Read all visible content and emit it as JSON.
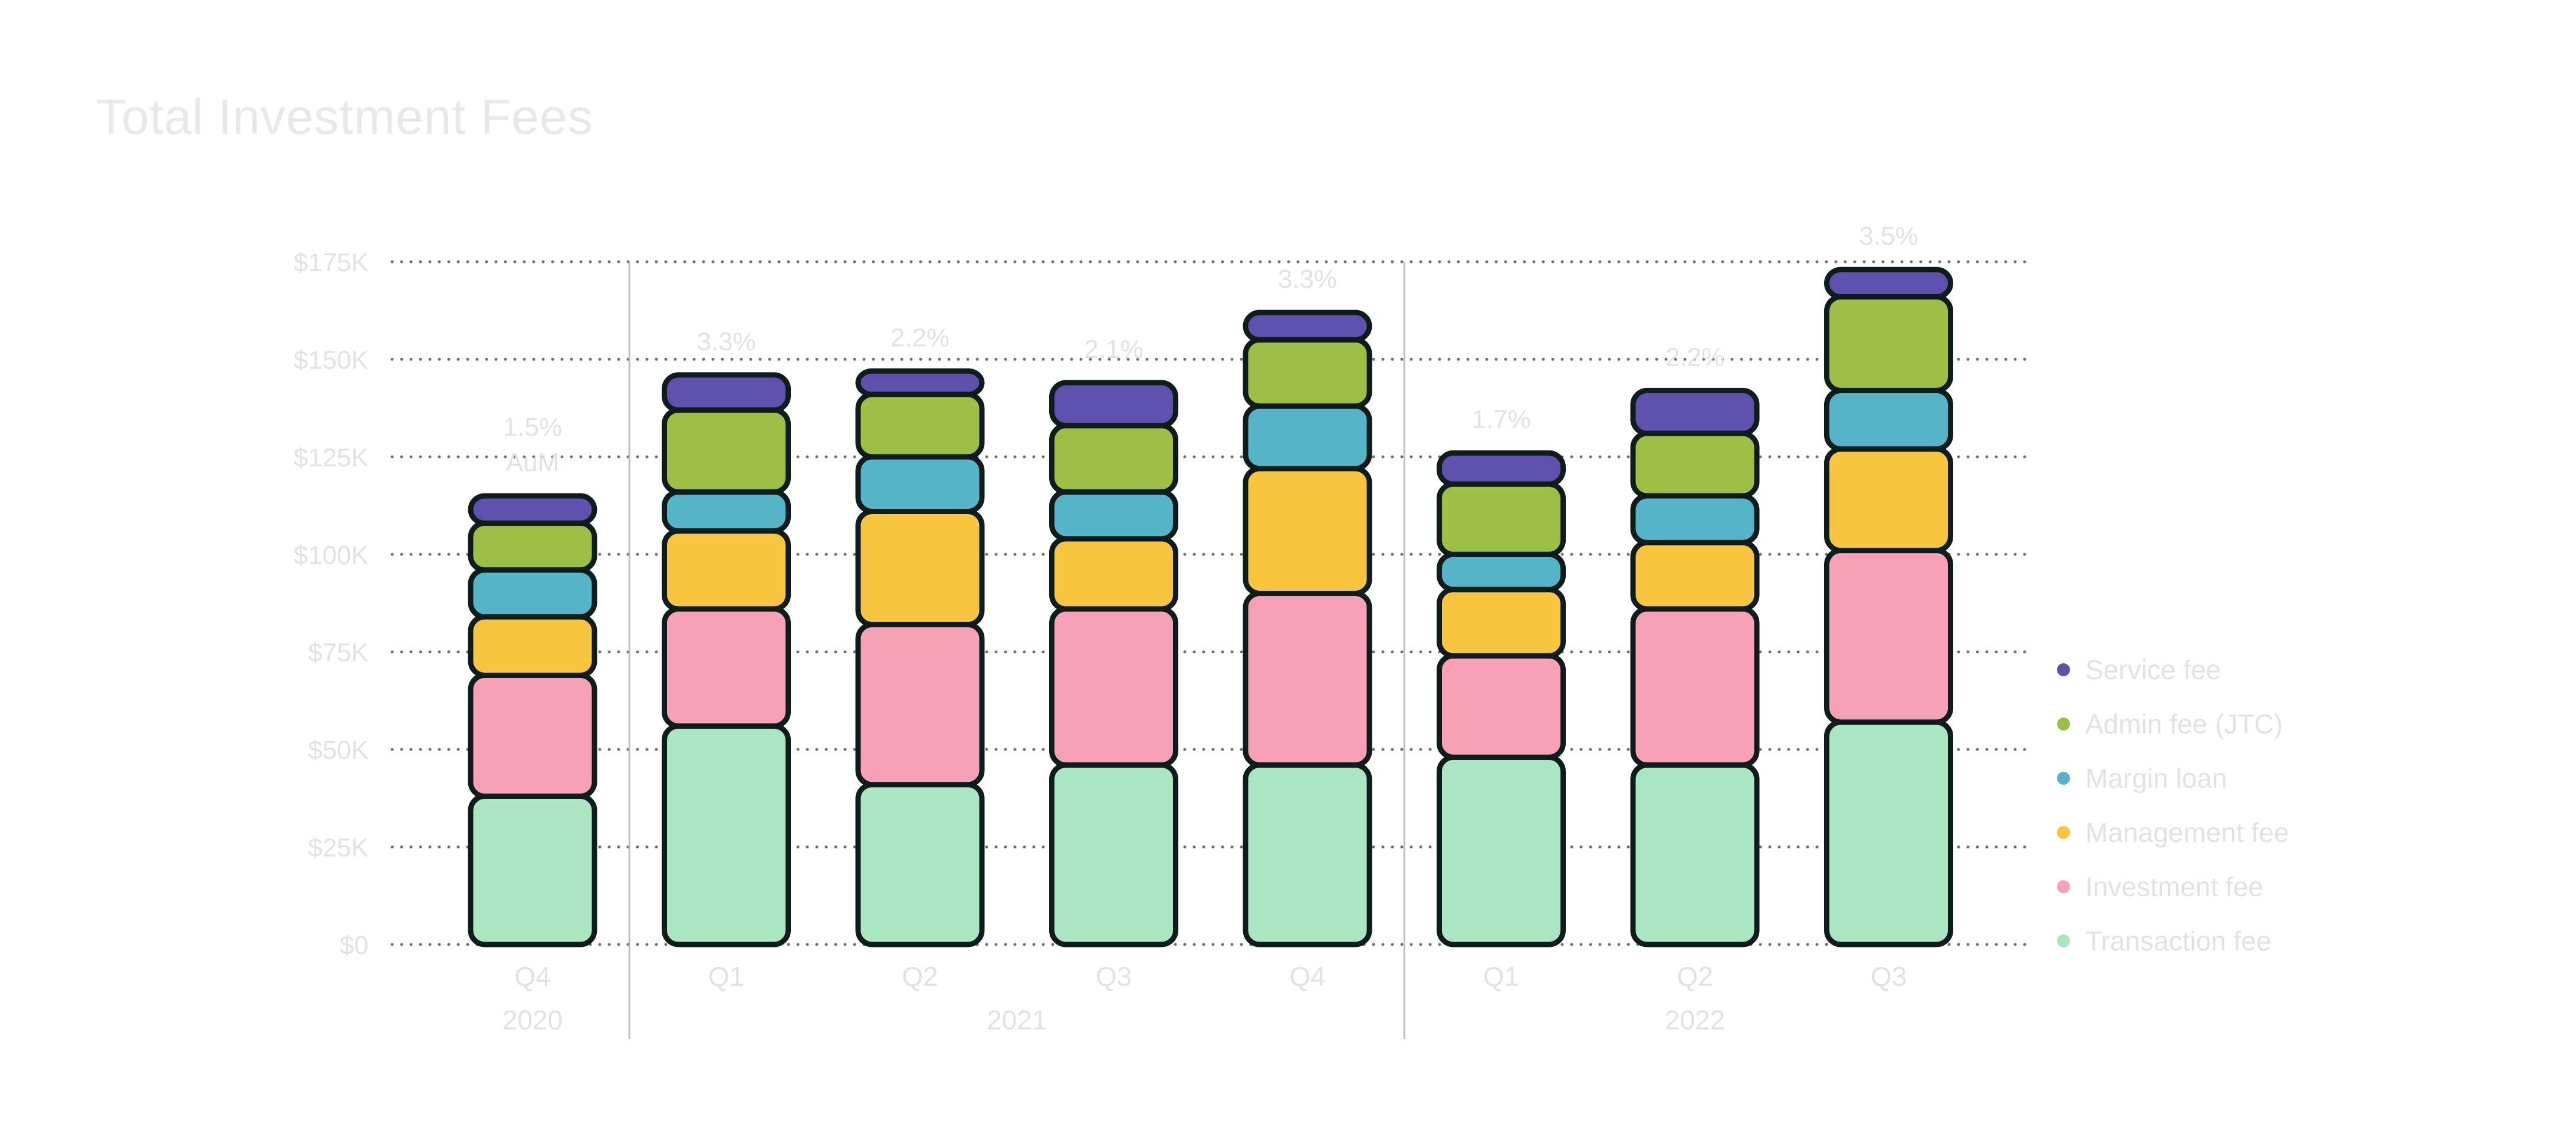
{
  "chart_data": {
    "type": "bar",
    "stacked": true,
    "title": "Total Investment Fees",
    "xlabel": "",
    "ylabel": "",
    "ylim": [
      0,
      175000
    ],
    "yticks": [
      0,
      25000,
      50000,
      75000,
      100000,
      125000,
      150000,
      175000
    ],
    "ytick_labels": [
      "$0",
      "$25K",
      "$50K",
      "$75K",
      "$100K",
      "$125K",
      "$150K",
      "$175K"
    ],
    "categories": [
      "Q4",
      "Q1",
      "Q2",
      "Q3",
      "Q4",
      "Q1",
      "Q2",
      "Q3"
    ],
    "groups": [
      {
        "label": "2020",
        "start": 0,
        "end": 0
      },
      {
        "label": "2021",
        "start": 1,
        "end": 4
      },
      {
        "label": "2022",
        "start": 5,
        "end": 7
      }
    ],
    "annotations": [
      "1.5%\nAuM",
      "3.3%",
      "2.2%",
      "2.1%",
      "3.3%",
      "1.7%",
      "2.2%",
      "3.5%"
    ],
    "series": [
      {
        "name": "Transaction fee",
        "color": "#abe6c3",
        "values": [
          38000,
          56000,
          41000,
          46000,
          46000,
          48000,
          46000,
          57000
        ]
      },
      {
        "name": "Investment fee",
        "color": "#f7a1b7",
        "values": [
          31000,
          30000,
          41000,
          40000,
          44000,
          26000,
          40000,
          44000
        ]
      },
      {
        "name": "Management fee",
        "color": "#f7c540",
        "values": [
          15000,
          20000,
          29000,
          18000,
          32000,
          17000,
          17000,
          26000
        ]
      },
      {
        "name": "Margin loan",
        "color": "#56b4c8",
        "values": [
          12000,
          10000,
          14000,
          12000,
          16000,
          9000,
          12000,
          15000
        ]
      },
      {
        "name": "Admin fee (JTC)",
        "color": "#9ebf45",
        "values": [
          12000,
          21000,
          16000,
          17000,
          17000,
          18000,
          16000,
          24000
        ]
      },
      {
        "name": "Service fee",
        "color": "#5e51ad",
        "values": [
          7000,
          9000,
          6000,
          11000,
          7000,
          8000,
          11000,
          7000
        ]
      }
    ]
  }
}
